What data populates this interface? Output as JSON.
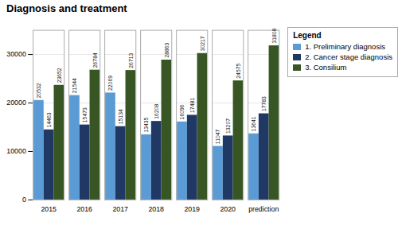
{
  "chart_data": {
    "type": "bar",
    "title": "Diagnosis and treatment",
    "categories": [
      "2015",
      "2016",
      "2017",
      "2018",
      "2019",
      "2020",
      "prediction"
    ],
    "series": [
      {
        "name": "1. Preliminary diagnosis",
        "color": "#5b9bd5",
        "values": [
          20532,
          21544,
          22069,
          13435,
          16096,
          11047,
          13641
        ]
      },
      {
        "name": "2. Cancer stage diagnosis",
        "color": "#1f3864",
        "values": [
          14463,
          15473,
          15134,
          16208,
          17481,
          13207,
          17783
        ]
      },
      {
        "name": "3. Consilium",
        "color": "#375623",
        "values": [
          23652,
          26784,
          26713,
          28863,
          30217,
          24575,
          31808
        ]
      }
    ],
    "ylim": [
      0,
      35000
    ],
    "yticks": [
      0,
      10000,
      20000,
      30000
    ],
    "grid": true,
    "legend": "right",
    "legend_title": "Legend",
    "data_labels": true
  }
}
